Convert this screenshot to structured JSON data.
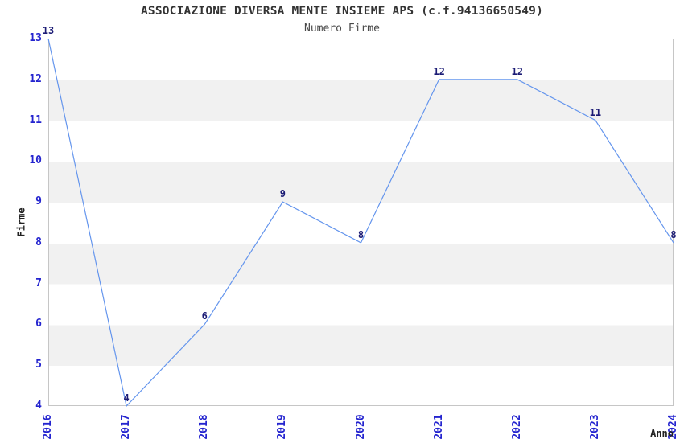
{
  "chart_data": {
    "type": "line",
    "title": "ASSOCIAZIONE DIVERSA MENTE INSIEME APS (c.f.94136650549)",
    "subtitle": "Numero Firme",
    "xlabel": "Anno",
    "ylabel": "Firme",
    "categories": [
      "2016",
      "2017",
      "2018",
      "2019",
      "2020",
      "2021",
      "2022",
      "2023",
      "2024"
    ],
    "series": [
      {
        "name": "Numero Firme",
        "values": [
          13,
          4,
          6,
          9,
          8,
          12,
          12,
          11,
          8
        ]
      }
    ],
    "point_labels": [
      "13",
      "4",
      "6",
      "9",
      "8",
      "12",
      "12",
      "11",
      "8"
    ],
    "ylim": [
      4,
      13
    ],
    "yticks": [
      4,
      5,
      6,
      7,
      8,
      9,
      10,
      11,
      12,
      13
    ],
    "grid": "alternating-horizontal-bands",
    "legend": "none",
    "colors": {
      "line": "#6495ed",
      "tick_label": "#2424cf",
      "data_label": "#1b1b75",
      "band": "#f1f1f1",
      "plot_border": "#c6c6c6",
      "title_text": "#333333",
      "axis_title_text": "#222222",
      "background": "#ffffff"
    }
  }
}
